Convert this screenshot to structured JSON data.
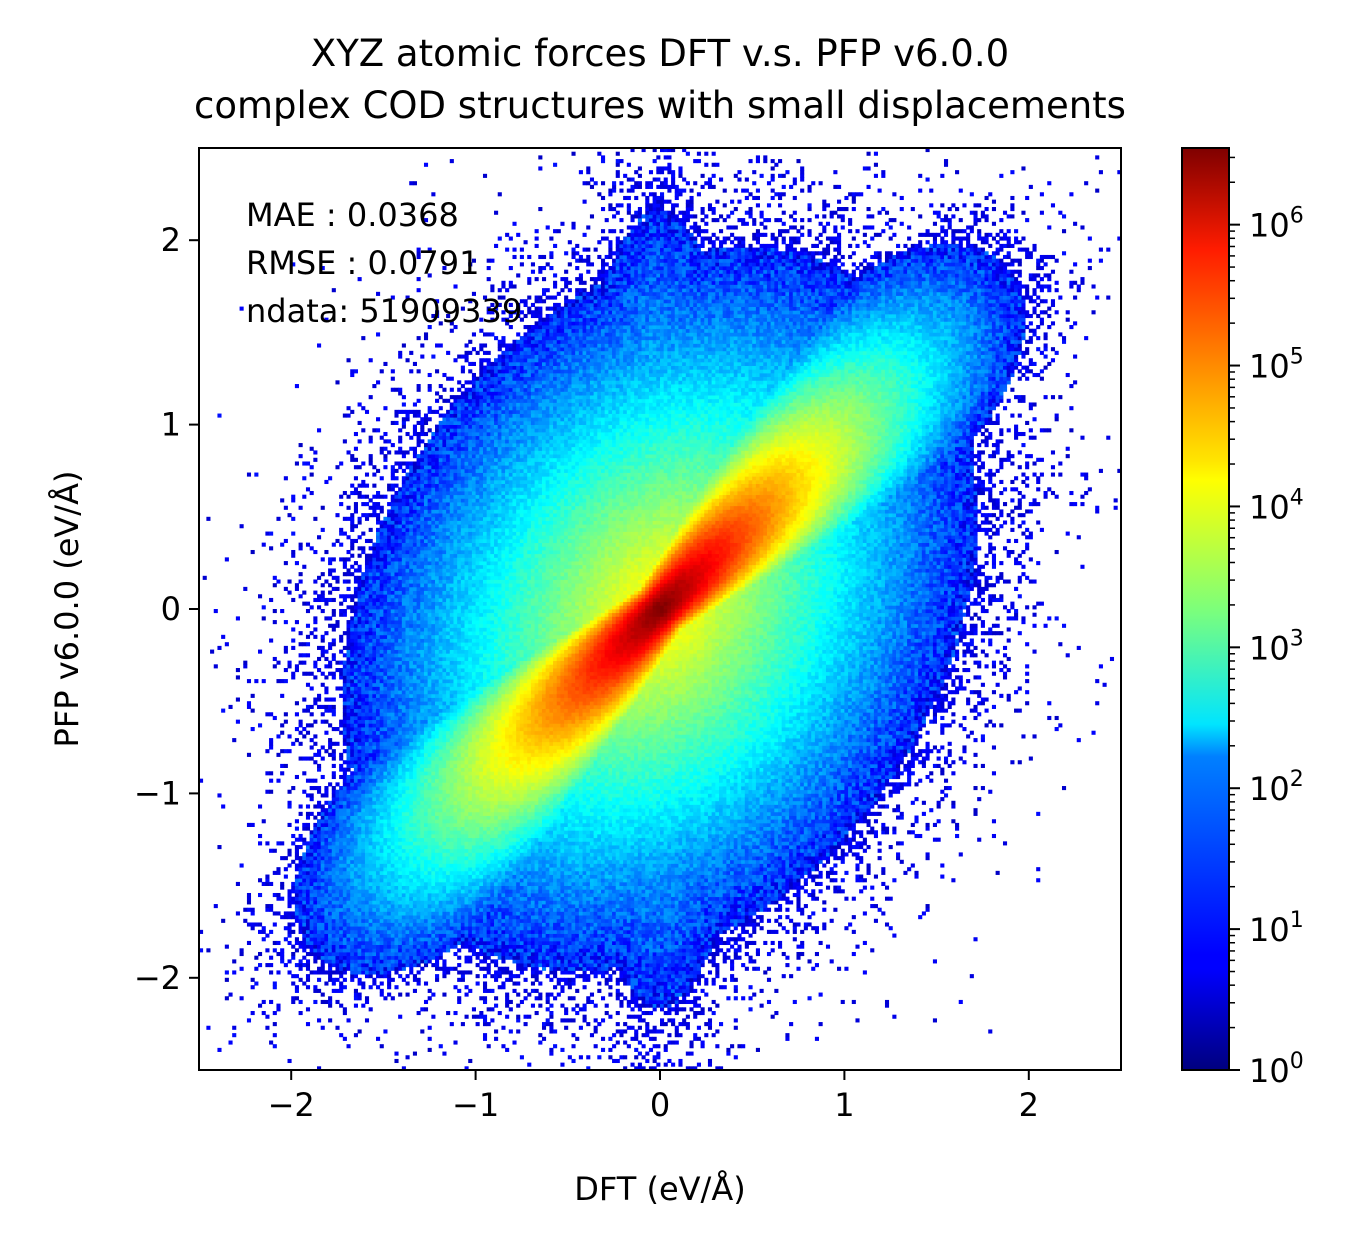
{
  "chart_data": {
    "type": "heatmap",
    "title": "XYZ atomic forces DFT v.s. PFP v6.0.0",
    "subtitle": "complex COD structures with small displacements",
    "xlabel": "DFT (eV/Å)",
    "ylabel": "PFP v6.0.0 (eV/Å)",
    "xlim": [
      -2.5,
      2.5
    ],
    "ylim": [
      -2.5,
      2.5
    ],
    "xticks": [
      -2,
      -1,
      0,
      1,
      2
    ],
    "yticks": [
      -2,
      -1,
      0,
      1,
      2
    ],
    "xtick_labels": [
      "−2",
      "−1",
      "0",
      "1",
      "2"
    ],
    "ytick_labels": [
      "−2",
      "−1",
      "0",
      "1",
      "2"
    ],
    "grid": false,
    "colormap": "jet",
    "color_scale": "log",
    "colorbar": {
      "min": 1,
      "max": 3500000,
      "ticks": [
        {
          "value": 1,
          "base": "10",
          "exp": "0"
        },
        {
          "value": 10,
          "base": "10",
          "exp": "1"
        },
        {
          "value": 100,
          "base": "10",
          "exp": "2"
        },
        {
          "value": 1000,
          "base": "10",
          "exp": "3"
        },
        {
          "value": 10000,
          "base": "10",
          "exp": "4"
        },
        {
          "value": 100000,
          "base": "10",
          "exp": "5"
        },
        {
          "value": 1000000,
          "base": "10",
          "exp": "6"
        }
      ]
    },
    "annotations": [
      "MAE : 0.0368",
      "RMSE : 0.0791",
      "ndata: 51909339"
    ],
    "bins": 250,
    "peak_count_approx": 3500000
  }
}
